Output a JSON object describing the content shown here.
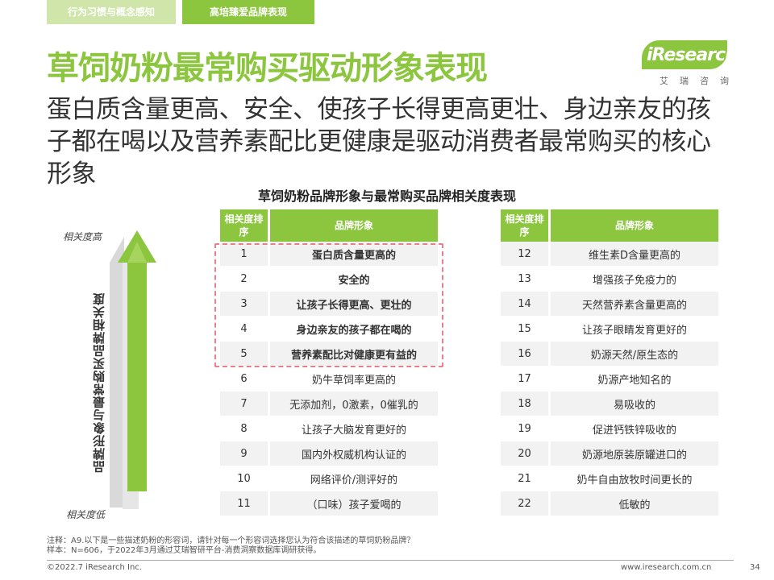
{
  "tabs": [
    {
      "label": "行为习惯与概念感知"
    },
    {
      "label": "高培臻爱品牌表现"
    }
  ],
  "title": "草饲奶粉最常购买驱动形象表现",
  "subtitle": "蛋白质含量更高、安全、使孩子长得更高更壮、身边亲友的孩子都在喝以及营养素配比更健康是驱动消费者最常购买的核心形象",
  "logo": {
    "text": "iResearch",
    "sub": "艾瑞咨询"
  },
  "table_title": "草饲奶粉品牌形象与最常购买品牌相关度表现",
  "axis": {
    "top": "相关度高",
    "bottom": "相关度低",
    "vertical": "品牌形象与最常购买品牌相关度"
  },
  "table_headers": {
    "rank": "相关度排序",
    "brand": "品牌形象"
  },
  "left_rows": [
    {
      "rank": "1",
      "label": "蛋白质含量更高的"
    },
    {
      "rank": "2",
      "label": "安全的"
    },
    {
      "rank": "3",
      "label": "让孩子长得更高、更壮的"
    },
    {
      "rank": "4",
      "label": "身边亲友的孩子都在喝的"
    },
    {
      "rank": "5",
      "label": "营养素配比对健康更有益的"
    },
    {
      "rank": "6",
      "label": "奶牛草饲率更高的"
    },
    {
      "rank": "7",
      "label": "无添加剂，0激素，0催乳的"
    },
    {
      "rank": "8",
      "label": "让孩子大脑发育更好的"
    },
    {
      "rank": "9",
      "label": "国内外权威机构认证的"
    },
    {
      "rank": "10",
      "label": "网络评价/测评好的"
    },
    {
      "rank": "11",
      "label": "（口味）孩子爱喝的"
    }
  ],
  "right_rows": [
    {
      "rank": "12",
      "label": "维生素D含量更高的"
    },
    {
      "rank": "13",
      "label": "增强孩子免疫力的"
    },
    {
      "rank": "14",
      "label": "天然营养素含量更高的"
    },
    {
      "rank": "15",
      "label": "让孩子眼睛发育更好的"
    },
    {
      "rank": "16",
      "label": "奶源天然/原生态的"
    },
    {
      "rank": "17",
      "label": "奶源产地知名的"
    },
    {
      "rank": "18",
      "label": "易吸收的"
    },
    {
      "rank": "19",
      "label": "促进钙铁锌吸收的"
    },
    {
      "rank": "20",
      "label": "奶源地原装原罐进口的"
    },
    {
      "rank": "21",
      "label": "奶牛自由放牧时间更长的"
    },
    {
      "rank": "22",
      "label": "低敏的"
    }
  ],
  "footnote": {
    "line1": "注释：A9.以下是一些描述奶粉的形容词，请针对每一个形容词选择您认为符合该描述的草饲奶粉品牌？",
    "line2": "样本：N=606，于2022年3月通过艾瑞智研平台-消费洞察数据库调研获得。"
  },
  "footer": {
    "copyright": "©2022.7 iResearch Inc.",
    "website": "www.iresearch.com.cn",
    "page": "34"
  },
  "colors": {
    "accent": "#8cc63f",
    "accent_light": "#cfe5a9",
    "highlight": "#e4828c"
  }
}
